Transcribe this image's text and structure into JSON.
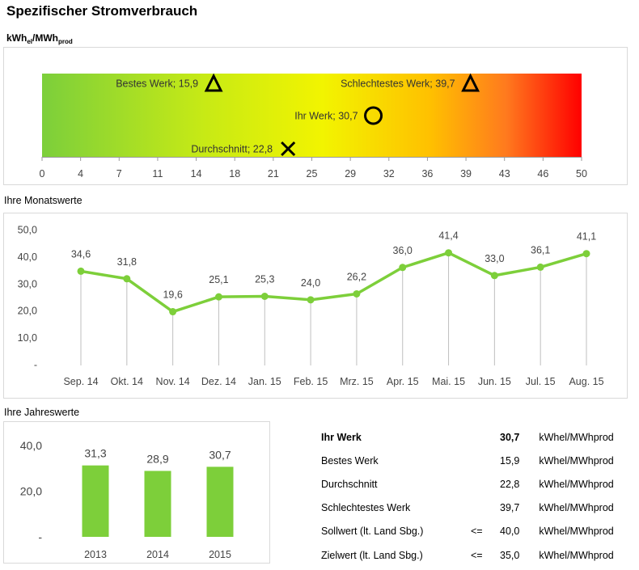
{
  "title": "Spezifischer Stromverbrauch",
  "unit_main": "kWh",
  "unit_sub1": "el",
  "unit_slash": "/MWh",
  "unit_sub2": "prod",
  "sections": {
    "monthly": "Ihre Monatswerte",
    "yearly": "Ihre Jahreswerte"
  },
  "colors": {
    "line": "#7dcf3a",
    "bar": "#7dcf3a",
    "grid": "#bfbfbf",
    "gradient": [
      "#7ccf3b",
      "#c7ea15",
      "#f2f400",
      "#ffc000",
      "#ff7a1e",
      "#ff0000"
    ]
  },
  "chart_data": [
    {
      "type": "bar",
      "subtype": "gradient-scale",
      "xlim": [
        0,
        50
      ],
      "tick_labels": [
        "0",
        "4",
        "7",
        "11",
        "14",
        "18",
        "21",
        "25",
        "29",
        "32",
        "36",
        "39",
        "43",
        "46",
        "50"
      ],
      "markers": [
        {
          "name": "Bestes Werk",
          "label": "Bestes Werk;  15,9",
          "value": 15.9,
          "symbol": "triangle"
        },
        {
          "name": "Schlechtestes Werk",
          "label": "Schlechtestes Werk;  39,7",
          "value": 39.7,
          "symbol": "triangle"
        },
        {
          "name": "Ihr Werk",
          "label": "Ihr Werk;  30,7",
          "value": 30.7,
          "symbol": "circle"
        },
        {
          "name": "Durchschnitt",
          "label": "Durchschnitt;  22,8",
          "value": 22.8,
          "symbol": "cross"
        }
      ]
    },
    {
      "type": "line",
      "categories": [
        "Sep. 14",
        "Okt. 14",
        "Nov. 14",
        "Dez. 14",
        "Jan. 15",
        "Feb. 15",
        "Mrz. 15",
        "Apr. 15",
        "Mai. 15",
        "Jun. 15",
        "Jul. 15",
        "Aug. 15"
      ],
      "values": [
        34.6,
        31.8,
        19.6,
        25.1,
        25.3,
        24.0,
        26.2,
        36.0,
        41.4,
        33.0,
        36.1,
        41.1
      ],
      "data_labels": [
        "34,6",
        "31,8",
        "19,6",
        "25,1",
        "25,3",
        "24,0",
        "26,2",
        "36,0",
        "41,4",
        "33,0",
        "36,1",
        "41,1"
      ],
      "ylim": [
        0,
        50
      ],
      "ytick_values": [
        0,
        10,
        20,
        30,
        40,
        50
      ],
      "ytick_labels": [
        "-",
        "10,0",
        "20,0",
        "30,0",
        "40,0",
        "50,0"
      ]
    },
    {
      "type": "bar",
      "categories": [
        "2013",
        "2014",
        "2015"
      ],
      "values": [
        31.3,
        28.9,
        30.7
      ],
      "data_labels": [
        "31,3",
        "28,9",
        "30,7"
      ],
      "ylim": [
        0,
        45
      ],
      "ytick_values": [
        0,
        20,
        40
      ],
      "ytick_labels": [
        "-",
        "20,0",
        "40,0"
      ]
    }
  ],
  "summary": [
    {
      "label": "Ihr Werk",
      "op": "",
      "value": "30,7",
      "unit": "kWhel/MWhprod",
      "bold": true
    },
    {
      "label": "Bestes Werk",
      "op": "",
      "value": "15,9",
      "unit": "kWhel/MWhprod",
      "bold": false
    },
    {
      "label": "Durchschnitt",
      "op": "",
      "value": "22,8",
      "unit": "kWhel/MWhprod",
      "bold": false
    },
    {
      "label": "Schlechtestes Werk",
      "op": "",
      "value": "39,7",
      "unit": "kWhel/MWhprod",
      "bold": false
    },
    {
      "label": "Sollwert (lt. Land Sbg.)",
      "op": "<=",
      "value": "40,0",
      "unit": "kWhel/MWhprod",
      "bold": false
    },
    {
      "label": "Zielwert (lt. Land Sbg.)",
      "op": "<=",
      "value": "35,0",
      "unit": "kWhel/MWhprod",
      "bold": false
    }
  ]
}
